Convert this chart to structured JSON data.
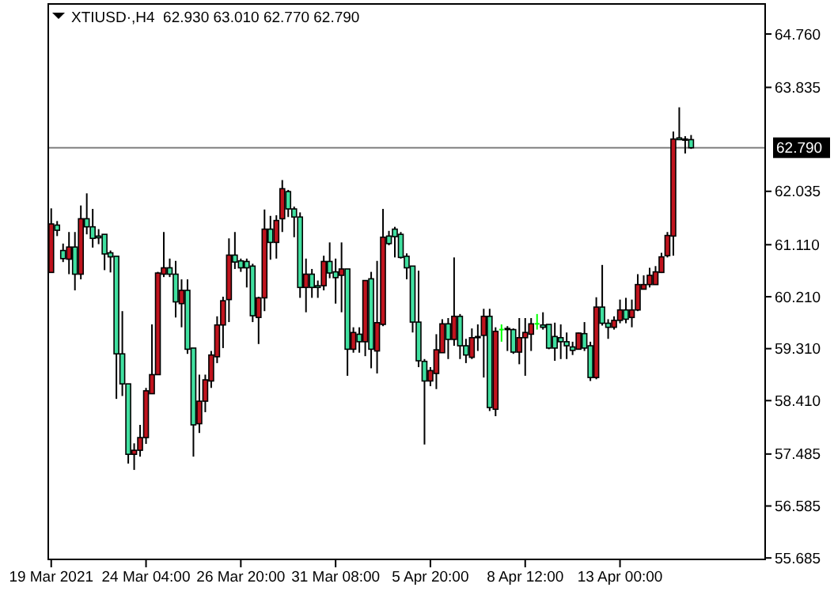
{
  "chart_data": {
    "type": "candlestick",
    "title": "XTIUSD·,H4  62.930 63.010 62.770 62.790",
    "categories": [
      "19 Mar 2021",
      null,
      null,
      null,
      null,
      null,
      null,
      null,
      null,
      null,
      null,
      null,
      null,
      null,
      null,
      null,
      "24 Mar 04:00",
      null,
      null,
      null,
      null,
      null,
      null,
      null,
      null,
      null,
      null,
      null,
      null,
      null,
      null,
      null,
      "26 Mar 20:00",
      null,
      null,
      null,
      null,
      null,
      null,
      null,
      null,
      null,
      null,
      null,
      null,
      null,
      null,
      null,
      "31 Mar 08:00",
      null,
      null,
      null,
      null,
      null,
      null,
      null,
      null,
      null,
      null,
      null,
      null,
      null,
      null,
      null,
      "5 Apr 20:00",
      null,
      null,
      null,
      null,
      null,
      null,
      null,
      null,
      null,
      null,
      null,
      null,
      null,
      null,
      null,
      "8 Apr 12:00",
      null,
      null,
      null,
      null,
      null,
      null,
      null,
      null,
      null,
      null,
      null,
      null,
      null,
      null,
      null,
      "13 Apr 00:00",
      null,
      null,
      null,
      null,
      null,
      null,
      null,
      null,
      null,
      null,
      null,
      null,
      null,
      null,
      null,
      null,
      null,
      null,
      null,
      null,
      null,
      null,
      null,
      null
    ],
    "ohlc": [
      [
        60.63,
        61.74,
        60.63,
        61.47
      ],
      [
        61.45,
        61.52,
        61.26,
        61.36
      ],
      [
        61.01,
        61.13,
        60.81,
        60.87
      ],
      [
        60.86,
        61.33,
        60.6,
        61.07
      ],
      [
        61.07,
        61.33,
        60.32,
        60.6
      ],
      [
        60.6,
        61.79,
        60.51,
        61.56
      ],
      [
        61.56,
        62.0,
        61.29,
        61.42
      ],
      [
        61.42,
        61.73,
        61.06,
        61.22
      ],
      [
        61.26,
        61.38,
        61.12,
        61.23
      ],
      [
        61.29,
        61.29,
        60.67,
        60.95
      ],
      [
        60.97,
        61.01,
        60.63,
        60.9
      ],
      [
        60.91,
        60.91,
        58.44,
        59.22
      ],
      [
        59.22,
        59.96,
        58.49,
        58.7
      ],
      [
        58.7,
        58.7,
        57.32,
        57.48
      ],
      [
        57.48,
        57.67,
        57.21,
        57.55
      ],
      [
        57.55,
        57.99,
        57.44,
        57.77
      ],
      [
        57.77,
        58.63,
        57.66,
        58.58
      ],
      [
        58.53,
        59.73,
        58.53,
        58.86
      ],
      [
        58.86,
        60.64,
        58.86,
        60.62
      ],
      [
        60.6,
        61.33,
        60.55,
        60.71
      ],
      [
        60.71,
        60.87,
        60.55,
        60.6
      ],
      [
        60.6,
        60.83,
        59.85,
        60.12
      ],
      [
        60.09,
        60.51,
        59.68,
        60.32
      ],
      [
        60.32,
        60.51,
        59.22,
        59.3
      ],
      [
        59.32,
        59.32,
        57.44,
        57.99
      ],
      [
        58.01,
        58.86,
        57.85,
        58.4
      ],
      [
        58.4,
        58.86,
        58.21,
        58.77
      ],
      [
        58.75,
        59.27,
        58.63,
        59.2
      ],
      [
        59.17,
        59.87,
        59.06,
        59.72
      ],
      [
        59.72,
        60.21,
        59.32,
        60.14
      ],
      [
        60.16,
        61.22,
        59.77,
        60.93
      ],
      [
        60.93,
        61.33,
        60.69,
        60.81
      ],
      [
        60.83,
        60.87,
        60.64,
        60.71
      ],
      [
        60.82,
        60.87,
        60.37,
        60.71
      ],
      [
        60.74,
        60.78,
        59.77,
        59.88
      ],
      [
        59.85,
        60.21,
        59.39,
        60.19
      ],
      [
        60.19,
        61.72,
        59.96,
        61.38
      ],
      [
        61.38,
        61.61,
        60.85,
        61.15
      ],
      [
        61.15,
        61.62,
        60.87,
        61.53
      ],
      [
        61.56,
        62.23,
        61.33,
        62.08
      ],
      [
        62.03,
        62.06,
        61.59,
        61.73
      ],
      [
        61.73,
        61.77,
        61.24,
        61.59
      ],
      [
        61.59,
        61.67,
        60.19,
        60.37
      ],
      [
        60.37,
        60.87,
        59.94,
        60.6
      ],
      [
        60.6,
        60.69,
        60.19,
        60.37
      ],
      [
        60.4,
        60.49,
        60.19,
        60.37
      ],
      [
        60.4,
        60.92,
        60.32,
        60.82
      ],
      [
        60.82,
        61.15,
        60.53,
        60.62
      ],
      [
        60.64,
        60.87,
        60.09,
        60.54
      ],
      [
        60.58,
        61.15,
        59.94,
        60.69
      ],
      [
        60.69,
        60.69,
        58.84,
        59.3
      ],
      [
        59.3,
        59.68,
        59.24,
        59.59
      ],
      [
        59.56,
        59.68,
        59.24,
        59.43
      ],
      [
        59.43,
        60.49,
        59.18,
        60.49
      ],
      [
        60.52,
        60.64,
        58.97,
        59.3
      ],
      [
        59.27,
        60.83,
        58.88,
        59.76
      ],
      [
        59.73,
        61.73,
        59.7,
        61.24
      ],
      [
        61.26,
        61.35,
        61.1,
        61.13
      ],
      [
        61.38,
        61.42,
        60.89,
        61.25
      ],
      [
        61.29,
        61.33,
        60.87,
        60.89
      ],
      [
        60.91,
        60.96,
        60.51,
        60.71
      ],
      [
        60.74,
        60.74,
        59.59,
        59.77
      ],
      [
        59.77,
        60.66,
        58.99,
        59.1
      ],
      [
        59.09,
        59.13,
        57.65,
        58.75
      ],
      [
        58.75,
        58.99,
        58.66,
        58.93
      ],
      [
        58.88,
        59.56,
        58.61,
        59.29
      ],
      [
        59.24,
        59.82,
        59.24,
        59.74
      ],
      [
        59.74,
        59.84,
        59.13,
        59.47
      ],
      [
        59.47,
        60.89,
        59.36,
        59.87
      ],
      [
        59.87,
        59.91,
        59.13,
        59.36
      ],
      [
        59.36,
        59.48,
        59.06,
        59.2
      ],
      [
        59.16,
        59.66,
        59.13,
        59.5
      ],
      [
        59.5,
        59.73,
        59.27,
        59.52
      ],
      [
        59.54,
        60.0,
        58.81,
        59.87
      ],
      [
        59.87,
        60.0,
        58.23,
        58.29
      ],
      [
        58.26,
        59.68,
        58.14,
        59.61
      ],
      [
        59.64,
        59.73,
        59.43,
        59.64
      ],
      [
        59.66,
        59.7,
        59.27,
        59.64
      ],
      [
        59.64,
        59.66,
        59.22,
        59.25
      ],
      [
        59.25,
        59.84,
        59.04,
        59.5
      ],
      [
        59.5,
        59.84,
        58.84,
        59.59
      ],
      [
        59.56,
        59.84,
        59.27,
        59.74
      ],
      [
        59.74,
        59.91,
        59.64,
        59.74
      ],
      [
        59.72,
        59.94,
        59.64,
        59.68
      ],
      [
        59.73,
        59.73,
        59.3,
        59.32
      ],
      [
        59.52,
        59.76,
        59.1,
        59.32
      ],
      [
        59.5,
        59.73,
        59.13,
        59.43
      ],
      [
        59.43,
        59.59,
        59.13,
        59.36
      ],
      [
        59.34,
        59.43,
        59.2,
        59.28
      ],
      [
        59.3,
        59.59,
        59.3,
        59.58
      ],
      [
        59.57,
        59.77,
        59.27,
        59.32
      ],
      [
        59.36,
        59.43,
        58.75,
        58.81
      ],
      [
        58.81,
        60.2,
        58.78,
        60.03
      ],
      [
        60.03,
        60.76,
        59.71,
        59.75
      ],
      [
        59.75,
        59.82,
        59.48,
        59.68
      ],
      [
        59.68,
        59.87,
        59.64,
        59.8
      ],
      [
        59.8,
        60.16,
        59.75,
        59.98
      ],
      [
        59.98,
        60.19,
        59.75,
        59.82
      ],
      [
        59.85,
        60.16,
        59.68,
        59.98
      ],
      [
        59.98,
        60.6,
        59.96,
        60.42
      ],
      [
        60.34,
        60.58,
        60.34,
        60.42
      ],
      [
        60.42,
        60.71,
        60.37,
        60.58
      ],
      [
        60.42,
        60.74,
        60.42,
        60.64
      ],
      [
        60.63,
        60.97,
        60.62,
        60.9
      ],
      [
        60.92,
        61.33,
        60.89,
        61.27
      ],
      [
        61.26,
        63.07,
        60.92,
        62.94
      ],
      [
        62.96,
        63.49,
        62.93,
        62.93
      ],
      [
        62.94,
        62.99,
        62.69,
        62.92
      ],
      [
        62.93,
        63.01,
        62.77,
        62.79
      ],
      null,
      null,
      null,
      null,
      null,
      null,
      null,
      null,
      null,
      null,
      null,
      null
    ],
    "colors": [
      "#c0141e",
      "#40e0a0",
      "#40e0a0",
      "#c0141e",
      "#40e0a0",
      "#c0141e",
      "#40e0a0",
      "#40e0a0",
      "#40e0a0",
      "#40e0a0",
      "#40e0a0",
      "#40e0a0",
      "#40e0a0",
      "#40e0a0",
      "#c0141e",
      "#c0141e",
      "#c0141e",
      "#c0141e",
      "#c0141e",
      "#c0141e",
      "#40e0a0",
      "#40e0a0",
      "#c0141e",
      "#40e0a0",
      "#40e0a0",
      "#c0141e",
      "#c0141e",
      "#c0141e",
      "#c0141e",
      "#c0141e",
      "#c0141e",
      "#40e0a0",
      "#40e0a0",
      "#40e0a0",
      "#40e0a0",
      "#c0141e",
      "#c0141e",
      "#40e0a0",
      "#c0141e",
      "#c0141e",
      "#40e0a0",
      "#40e0a0",
      "#40e0a0",
      "#c0141e",
      "#40e0a0",
      "#40e0a0",
      "#c0141e",
      "#40e0a0",
      "#40e0a0",
      "#c0141e",
      "#40e0a0",
      "#c0141e",
      "#40e0a0",
      "#c0141e",
      "#40e0a0",
      "#c0141e",
      "#c0141e",
      "#40e0a0",
      "#40e0a0",
      "#40e0a0",
      "#40e0a0",
      "#40e0a0",
      "#40e0a0",
      "#40e0a0",
      "#c0141e",
      "#c0141e",
      "#c0141e",
      "#40e0a0",
      "#c0141e",
      "#40e0a0",
      "#40e0a0",
      "#c0141e",
      "#c0141e",
      "#c0141e",
      "#40e0a0",
      "#c0141e",
      "#00ff00",
      "#40e0a0",
      "#40e0a0",
      "#c0141e",
      "#c0141e",
      "#c0141e",
      "#00ff00",
      "#40e0a0",
      "#40e0a0",
      "#40e0a0",
      "#40e0a0",
      "#40e0a0",
      "#40e0a0",
      "#c0141e",
      "#40e0a0",
      "#40e0a0",
      "#c0141e",
      "#40e0a0",
      "#40e0a0",
      "#c0141e",
      "#c0141e",
      "#40e0a0",
      "#c0141e",
      "#c0141e",
      "#c0141e",
      "#c0141e",
      "#c0141e",
      "#c0141e",
      "#c0141e",
      "#c0141e",
      "#40e0a0",
      "#40e0a0",
      "#40e0a0",
      null,
      null,
      null,
      null,
      null,
      null,
      null,
      null,
      null,
      null,
      null,
      null
    ],
    "ylim": [
      55.66,
      65.28
    ],
    "yticks": [
      55.685,
      56.585,
      57.485,
      {
        "value": 58.41,
        "label": "58.410"
      },
      {
        "value": 59.31,
        "label": "59.310"
      },
      {
        "value": 60.21,
        "label": "60.210"
      },
      {
        "value": 61.11,
        "label": "61.110"
      },
      62.035,
      63.835,
      {
        "value": 64.76,
        "label": "64.760"
      }
    ],
    "ref_lines": [
      {
        "axis": "y",
        "value": 62.79,
        "label": "62.790",
        "color": "#808080"
      }
    ],
    "grid": false
  }
}
